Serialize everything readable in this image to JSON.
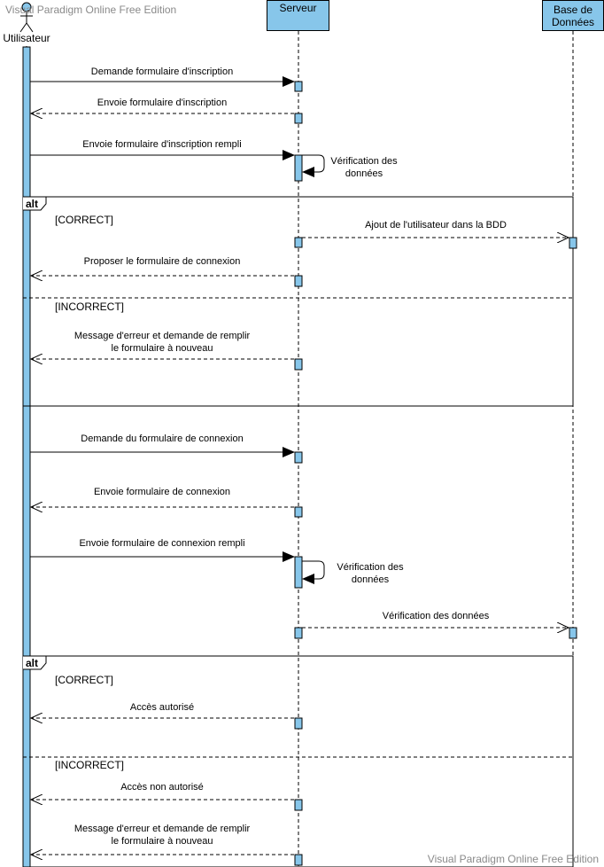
{
  "watermark_top": "Visual Paradigm Online Free Edition",
  "watermark_bottom": "Visual Paradigm Online Free Edition",
  "participants": [
    {
      "id": "user",
      "label": "Utilisateur",
      "kind": "actor"
    },
    {
      "id": "server",
      "label": "Serveur",
      "kind": "object"
    },
    {
      "id": "db",
      "label": "Base de\nDonnées",
      "kind": "object"
    }
  ],
  "colors": {
    "activation": "#87c6ea",
    "line": "#000000"
  },
  "fragments": [
    {
      "label": "alt",
      "guards": [
        "[CORRECT]",
        "[INCORRECT]"
      ]
    },
    {
      "label": "alt",
      "guards": [
        "[CORRECT]",
        "[INCORRECT]"
      ]
    }
  ],
  "messages": [
    {
      "text": "Demande formulaire d'inscription",
      "kind": "sync"
    },
    {
      "text": "Envoie formulaire d'inscription",
      "kind": "reply"
    },
    {
      "text": "Envoie formulaire d'inscription rempli",
      "kind": "sync"
    },
    {
      "text": "Vérification des\ndonnées",
      "kind": "self"
    },
    {
      "text": "Ajout de l'utilisateur dans la BDD",
      "kind": "async"
    },
    {
      "text": "Proposer le formulaire de connexion",
      "kind": "reply"
    },
    {
      "text": "Message d'erreur et demande de remplir\nle formulaire à nouveau",
      "kind": "reply"
    },
    {
      "text": "Demande du formulaire de connexion",
      "kind": "sync"
    },
    {
      "text": "Envoie formulaire de connexion",
      "kind": "reply"
    },
    {
      "text": "Envoie formulaire de connexion rempli",
      "kind": "sync"
    },
    {
      "text": "Vérification des\ndonnées",
      "kind": "self"
    },
    {
      "text": "Vérification des données",
      "kind": "async"
    },
    {
      "text": "Accès autorisé",
      "kind": "reply"
    },
    {
      "text": "Accès non autorisé",
      "kind": "reply"
    },
    {
      "text": "Message d'erreur et demande de remplir\nle formulaire à nouveau",
      "kind": "reply"
    }
  ]
}
